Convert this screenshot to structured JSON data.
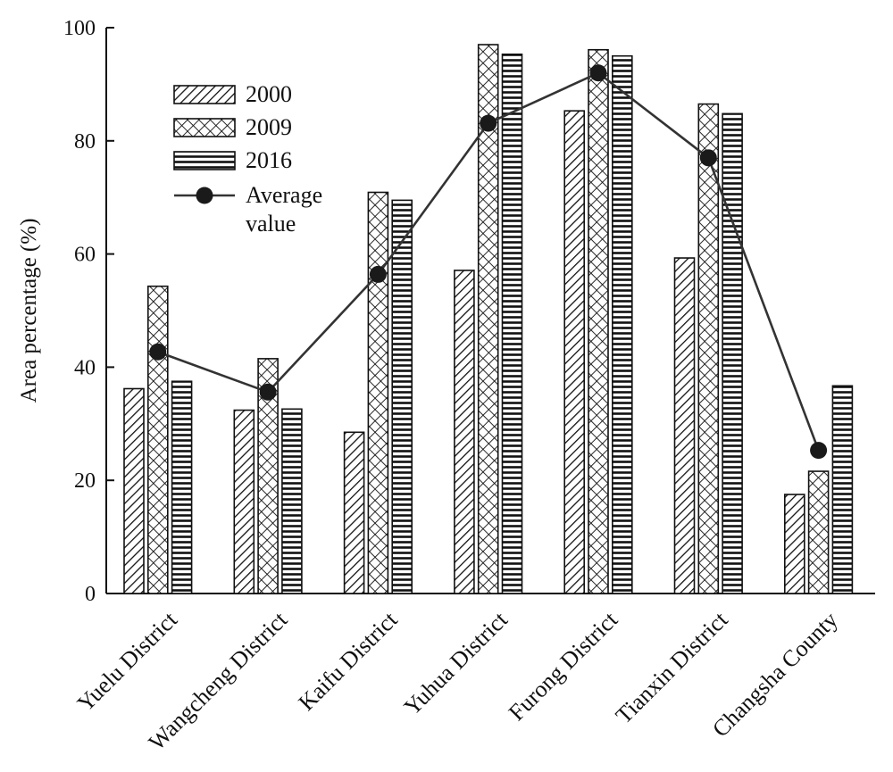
{
  "chart_data": {
    "type": "bar",
    "title": "",
    "xlabel": "",
    "ylabel": "Area percentage (%)",
    "ylim": [
      0,
      100
    ],
    "yticks": [
      0,
      20,
      40,
      60,
      80,
      100
    ],
    "grid": false,
    "legend_position": "top-left",
    "categories": [
      "Yuelu District",
      "Wangcheng District",
      "Kaifu District",
      "Yuhua District",
      "Furong District",
      "Tianxin District",
      "Changsha County"
    ],
    "series": [
      {
        "name": "2000",
        "pattern": "diagonal-hatch",
        "values": [
          36.2,
          32.4,
          28.5,
          57.1,
          85.3,
          59.3,
          17.5
        ]
      },
      {
        "name": "2009",
        "pattern": "cross-hatch",
        "values": [
          54.3,
          41.5,
          70.9,
          97.0,
          96.1,
          86.5,
          21.6
        ]
      },
      {
        "name": "2016",
        "pattern": "horizontal-lines",
        "values": [
          37.5,
          32.6,
          69.5,
          95.3,
          95.0,
          84.8,
          36.7
        ]
      }
    ],
    "line_series": {
      "name_lines": [
        "Average",
        "value"
      ],
      "values": [
        42.7,
        35.6,
        56.4,
        83.1,
        92.0,
        77.0,
        25.3
      ]
    },
    "colors": {
      "bar_fill": "#ffffff",
      "stroke": "#111111",
      "line": "#333333",
      "marker": "#1a1a1a"
    }
  }
}
